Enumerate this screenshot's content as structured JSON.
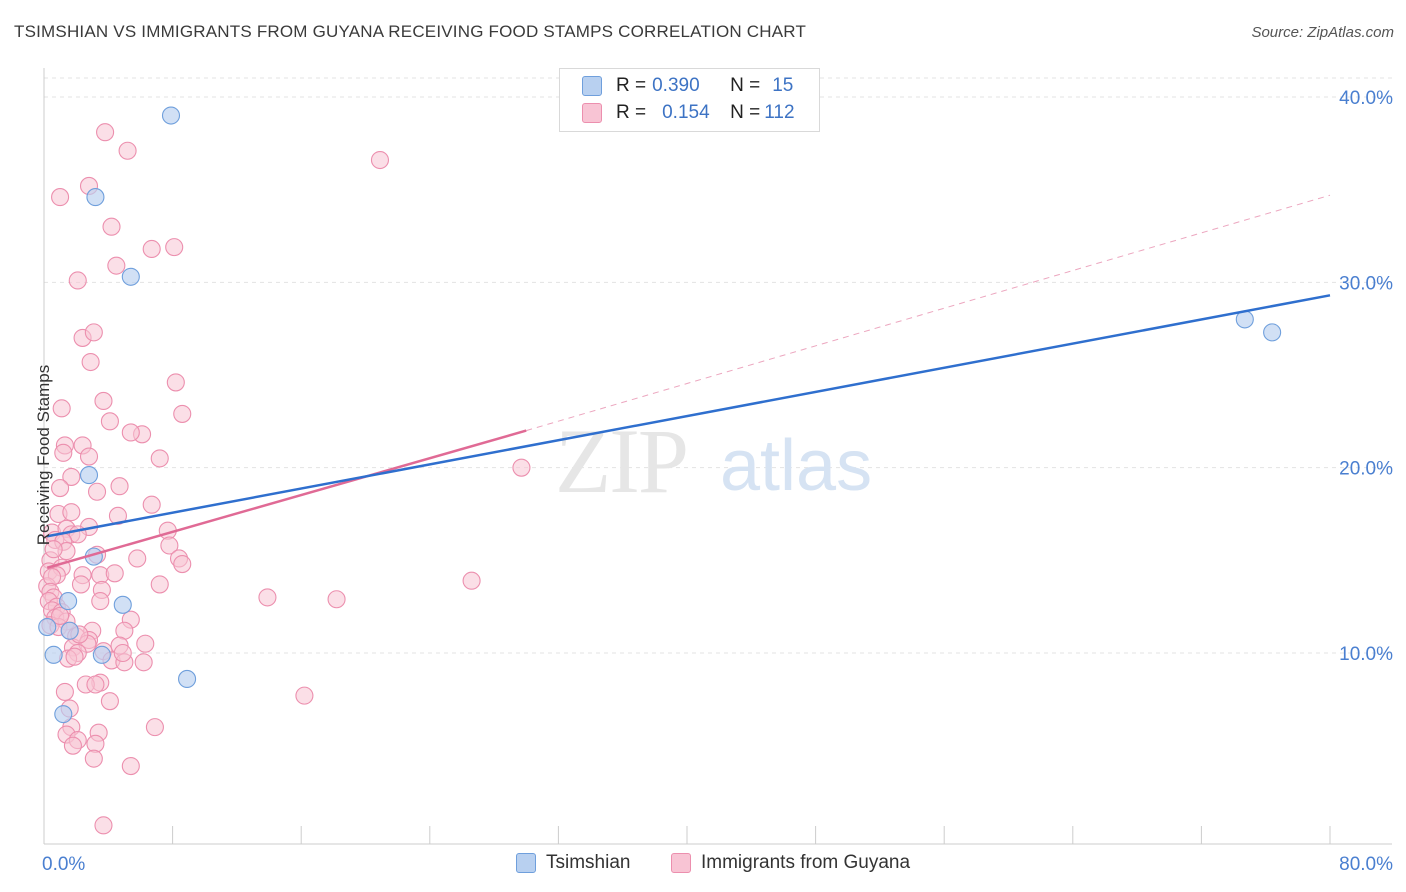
{
  "header": {
    "title": "TSIMSHIAN VS IMMIGRANTS FROM GUYANA RECEIVING FOOD STAMPS CORRELATION CHART",
    "source": "Source: ZipAtlas.com"
  },
  "legend": {
    "row1": {
      "r_label": "R = ",
      "r_value": "0.390",
      "n_label": "N = ",
      "n_value": "15"
    },
    "row2": {
      "r_label": "R = ",
      "r_value": "0.154",
      "n_label": "N = ",
      "n_value": "112"
    }
  },
  "watermark": {
    "zip": "ZIP",
    "atlas": "atlas"
  },
  "colors": {
    "blue_fill": "#b8d0f0",
    "blue_stroke": "#6f9fdc",
    "blue_line": "#2f6fce",
    "pink_fill": "#f8c4d4",
    "pink_stroke": "#ec8fae",
    "pink_line": "#e06a95",
    "grid": "#e3e3e3",
    "axis_text": "#4a7fd0"
  },
  "chart_data": {
    "type": "scatter",
    "title": "TSIMSHIAN VS IMMIGRANTS FROM GUYANA RECEIVING FOOD STAMPS CORRELATION CHART",
    "xlabel": "",
    "ylabel": "Receiving Food Stamps",
    "xlim": [
      0,
      80
    ],
    "ylim": [
      0,
      42
    ],
    "x_tick_labels": [
      "0.0%",
      "80.0%"
    ],
    "y_ticks": [
      10,
      20,
      30,
      40
    ],
    "y_tick_labels": [
      "10.0%",
      "20.0%",
      "30.0%",
      "40.0%"
    ],
    "grid": true,
    "legend_position": "top-center",
    "series": [
      {
        "name": "Tsimshian",
        "color": "blue",
        "points": [
          [
            7.9,
            39.0
          ],
          [
            3.2,
            34.6
          ],
          [
            5.4,
            30.3
          ],
          [
            2.8,
            19.6
          ],
          [
            3.1,
            15.2
          ],
          [
            4.9,
            12.6
          ],
          [
            1.5,
            12.8
          ],
          [
            1.6,
            11.2
          ],
          [
            3.6,
            9.9
          ],
          [
            0.6,
            9.9
          ],
          [
            1.2,
            6.7
          ],
          [
            8.9,
            8.6
          ],
          [
            0.2,
            11.4
          ],
          [
            74.7,
            28.0
          ],
          [
            76.4,
            27.3
          ]
        ],
        "trend": {
          "x": [
            0.2,
            80
          ],
          "y": [
            16.3,
            29.3
          ]
        }
      },
      {
        "name": "Immigrants from Guyana",
        "color": "pink",
        "points": [
          [
            3.8,
            38.1
          ],
          [
            5.2,
            37.1
          ],
          [
            20.9,
            36.6
          ],
          [
            1.0,
            34.6
          ],
          [
            2.8,
            35.2
          ],
          [
            4.2,
            33.0
          ],
          [
            6.7,
            31.8
          ],
          [
            8.1,
            31.9
          ],
          [
            4.5,
            30.9
          ],
          [
            2.1,
            30.1
          ],
          [
            2.4,
            27.0
          ],
          [
            3.1,
            27.3
          ],
          [
            2.9,
            25.7
          ],
          [
            8.2,
            24.6
          ],
          [
            3.7,
            23.6
          ],
          [
            1.1,
            23.2
          ],
          [
            8.6,
            22.9
          ],
          [
            4.1,
            22.5
          ],
          [
            6.1,
            21.8
          ],
          [
            5.4,
            21.9
          ],
          [
            1.3,
            21.2
          ],
          [
            2.4,
            21.2
          ],
          [
            1.2,
            20.8
          ],
          [
            2.8,
            20.6
          ],
          [
            7.2,
            20.5
          ],
          [
            1.7,
            19.5
          ],
          [
            1.0,
            18.9
          ],
          [
            4.7,
            19.0
          ],
          [
            3.3,
            18.7
          ],
          [
            6.7,
            18.0
          ],
          [
            0.9,
            17.5
          ],
          [
            1.7,
            17.6
          ],
          [
            4.6,
            17.4
          ],
          [
            2.8,
            16.8
          ],
          [
            0.5,
            16.5
          ],
          [
            1.4,
            16.7
          ],
          [
            1.7,
            16.4
          ],
          [
            7.7,
            16.6
          ],
          [
            0.7,
            16.1
          ],
          [
            2.1,
            16.4
          ],
          [
            1.2,
            16.0
          ],
          [
            7.8,
            15.8
          ],
          [
            0.4,
            15.0
          ],
          [
            1.4,
            15.5
          ],
          [
            3.3,
            15.3
          ],
          [
            5.8,
            15.1
          ],
          [
            8.4,
            15.1
          ],
          [
            8.6,
            14.8
          ],
          [
            0.3,
            14.4
          ],
          [
            1.1,
            14.6
          ],
          [
            0.8,
            14.2
          ],
          [
            2.4,
            14.2
          ],
          [
            3.5,
            14.2
          ],
          [
            4.4,
            14.3
          ],
          [
            0.2,
            13.6
          ],
          [
            0.5,
            14.1
          ],
          [
            2.3,
            13.7
          ],
          [
            7.2,
            13.7
          ],
          [
            26.6,
            13.9
          ],
          [
            0.4,
            13.3
          ],
          [
            0.6,
            13.0
          ],
          [
            0.3,
            12.8
          ],
          [
            0.8,
            12.5
          ],
          [
            3.6,
            13.4
          ],
          [
            13.9,
            13.0
          ],
          [
            18.2,
            12.9
          ],
          [
            0.5,
            12.3
          ],
          [
            1.1,
            12.2
          ],
          [
            3.5,
            12.8
          ],
          [
            0.7,
            11.9
          ],
          [
            1.4,
            11.7
          ],
          [
            5.4,
            11.8
          ],
          [
            0.4,
            11.5
          ],
          [
            0.9,
            11.4
          ],
          [
            1.6,
            11.2
          ],
          [
            3.0,
            11.2
          ],
          [
            5.0,
            11.2
          ],
          [
            2.0,
            10.9
          ],
          [
            2.8,
            10.7
          ],
          [
            1.8,
            10.3
          ],
          [
            4.7,
            10.4
          ],
          [
            6.3,
            10.5
          ],
          [
            2.7,
            10.5
          ],
          [
            3.7,
            10.1
          ],
          [
            2.1,
            10.0
          ],
          [
            1.5,
            9.7
          ],
          [
            4.2,
            9.6
          ],
          [
            5.0,
            9.5
          ],
          [
            6.2,
            9.5
          ],
          [
            3.5,
            8.4
          ],
          [
            2.6,
            8.3
          ],
          [
            3.2,
            8.3
          ],
          [
            1.3,
            7.9
          ],
          [
            16.2,
            7.7
          ],
          [
            4.1,
            7.4
          ],
          [
            1.6,
            7.0
          ],
          [
            1.7,
            6.0
          ],
          [
            6.9,
            6.0
          ],
          [
            1.4,
            5.6
          ],
          [
            3.4,
            5.7
          ],
          [
            2.1,
            5.3
          ],
          [
            3.2,
            5.1
          ],
          [
            1.8,
            5.0
          ],
          [
            3.1,
            4.3
          ],
          [
            5.4,
            3.9
          ],
          [
            3.7,
            0.7
          ],
          [
            29.7,
            20.0
          ],
          [
            4.9,
            10.0
          ],
          [
            1.0,
            12.0
          ],
          [
            2.2,
            11.0
          ],
          [
            0.6,
            15.6
          ],
          [
            1.9,
            9.8
          ]
        ],
        "trend": {
          "x": [
            0.2,
            30
          ],
          "y": [
            14.6,
            22.0
          ]
        },
        "trend_dashed": {
          "x": [
            30,
            80
          ],
          "y": [
            22.0,
            34.7
          ]
        }
      }
    ]
  },
  "bottom_legend": {
    "item1": "Tsimshian",
    "item2": "Immigrants from Guyana"
  }
}
